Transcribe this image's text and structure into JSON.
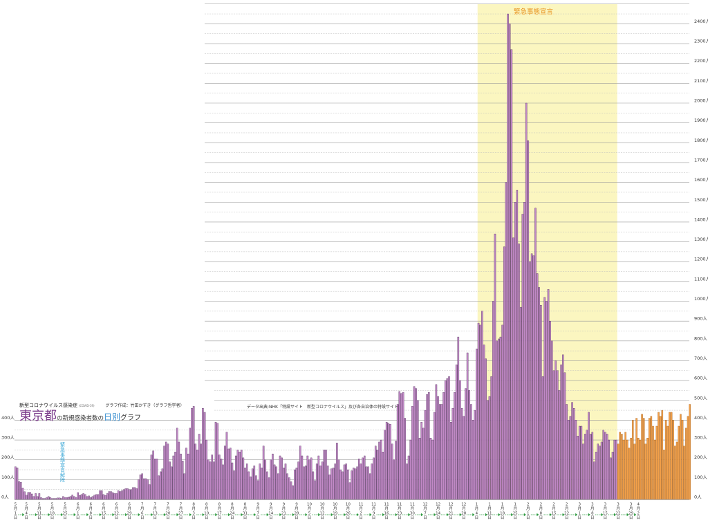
{
  "header": {
    "title_main": "新型コロナウイルス感染症",
    "title_small": "(COVID-19)",
    "author": "グラフ作成：竹田かずき（グラフ哲学者）",
    "subtitle_tokyo": "東京都",
    "subtitle_mid": "の新規感染者数の",
    "subtitle_daily": "日別",
    "subtitle_graph": "グラフ",
    "source": "データ出典:NHK「特設サイト　新型コロナウイルス」及び各自治体の特設サイト"
  },
  "annotations": {
    "emergency_label": "緊急事態宣言",
    "lift_label": "緊急事態宣言解除"
  },
  "colors": {
    "bar": "#c189c6",
    "bar_stroke": "#4a2a55",
    "bar_recent": "#f2a04a",
    "bar_recent_stroke": "#9a5a1a",
    "emergency_band": "#fbf6c0",
    "grid_solid": "#9a9a9a",
    "grid_dash": "#bdbdbd",
    "arrow": "#2e9a40"
  },
  "chart_data": {
    "type": "bar",
    "title": "新型コロナウイルス感染症 東京都の新規感染者数の日別グラフ",
    "ylim": [
      0,
      2500
    ],
    "y_unit": "人",
    "grid": true,
    "y_ticks": [
      "0人",
      "100人",
      "200人",
      "300人",
      "400人",
      "500人",
      "600人",
      "700人",
      "800人",
      "900人",
      "1000人",
      "1100人",
      "1200人",
      "1300人",
      "1400人",
      "1500人",
      "1600人",
      "1700人",
      "1800人",
      "1900人",
      "2000人",
      "2100人",
      "2200人",
      "2300人",
      "2400人"
    ],
    "x_ticks": [
      {
        "index": 0,
        "label": "5月1日"
      },
      {
        "index": 6,
        "label": "5月4日"
      },
      {
        "index": 13,
        "label": "5月11日"
      },
      {
        "index": 20,
        "label": "5月18日"
      },
      {
        "index": 27,
        "label": "5月25日"
      },
      {
        "index": 34,
        "label": "6月1日"
      },
      {
        "index": 41,
        "label": "6月8日"
      },
      {
        "index": 48,
        "label": "6月15日"
      },
      {
        "index": 55,
        "label": "6月22日"
      },
      {
        "index": 62,
        "label": "6月29日"
      },
      {
        "index": 69,
        "label": "7月6日"
      },
      {
        "index": 76,
        "label": "7月13日"
      },
      {
        "index": 83,
        "label": "7月20日"
      },
      {
        "index": 90,
        "label": "7月27日"
      },
      {
        "index": 97,
        "label": "8月3日"
      },
      {
        "index": 104,
        "label": "8月10日"
      },
      {
        "index": 111,
        "label": "8月17日"
      },
      {
        "index": 118,
        "label": "8月24日"
      },
      {
        "index": 125,
        "label": "8月31日"
      },
      {
        "index": 132,
        "label": "9月7日"
      },
      {
        "index": 139,
        "label": "9月14日"
      },
      {
        "index": 146,
        "label": "9月21日"
      },
      {
        "index": 153,
        "label": "9月28日"
      },
      {
        "index": 160,
        "label": "10月5日"
      },
      {
        "index": 167,
        "label": "10月12日"
      },
      {
        "index": 174,
        "label": "10月19日"
      },
      {
        "index": 181,
        "label": "10月26日"
      },
      {
        "index": 188,
        "label": "11月2日"
      },
      {
        "index": 195,
        "label": "11月9日"
      },
      {
        "index": 202,
        "label": "11月16日"
      },
      {
        "index": 209,
        "label": "11月23日"
      },
      {
        "index": 216,
        "label": "11月30日"
      },
      {
        "index": 223,
        "label": "12月7日"
      },
      {
        "index": 230,
        "label": "12月14日"
      },
      {
        "index": 237,
        "label": "12月21日"
      },
      {
        "index": 244,
        "label": "12月28日"
      },
      {
        "index": 251,
        "label": "1月4日"
      },
      {
        "index": 258,
        "label": "1月11日"
      },
      {
        "index": 265,
        "label": "1月18日"
      },
      {
        "index": 272,
        "label": "1月25日"
      },
      {
        "index": 279,
        "label": "2月1日"
      },
      {
        "index": 286,
        "label": "2月8日"
      },
      {
        "index": 293,
        "label": "2月15日"
      },
      {
        "index": 300,
        "label": "2月22日"
      },
      {
        "index": 307,
        "label": "3月1日"
      },
      {
        "index": 314,
        "label": "3月8日"
      },
      {
        "index": 321,
        "label": "3月15日"
      },
      {
        "index": 328,
        "label": "3月22日"
      },
      {
        "index": 335,
        "label": "3月29日"
      },
      {
        "index": 339,
        "label": "4月2日"
      }
    ],
    "emergency_period": {
      "start": 252,
      "end": 328
    },
    "recent_start": 328,
    "values": [
      165,
      160,
      91,
      87,
      58,
      39,
      22,
      36,
      36,
      28,
      15,
      30,
      15,
      30,
      10,
      5,
      5,
      10,
      15,
      10,
      5,
      5,
      5,
      8,
      8,
      5,
      15,
      10,
      10,
      13,
      15,
      23,
      15,
      10,
      35,
      20,
      25,
      30,
      25,
      15,
      18,
      10,
      15,
      22,
      25,
      25,
      45,
      45,
      25,
      20,
      30,
      40,
      40,
      35,
      30,
      30,
      45,
      40,
      45,
      50,
      55,
      55,
      50,
      50,
      60,
      60,
      55,
      100,
      125,
      130,
      105,
      105,
      100,
      75,
      225,
      245,
      205,
      205,
      120,
      140,
      155,
      270,
      290,
      280,
      190,
      165,
      220,
      240,
      360,
      290,
      230,
      195,
      130,
      260,
      230,
      360,
      460,
      470,
      280,
      250,
      330,
      280,
      460,
      440,
      300,
      200,
      190,
      225,
      190,
      390,
      385,
      225,
      205,
      175,
      270,
      340,
      255,
      260,
      185,
      145,
      220,
      250,
      240,
      250,
      210,
      160,
      180,
      140,
      115,
      155,
      170,
      120,
      95,
      180,
      160,
      270,
      200,
      140,
      110,
      200,
      230,
      175,
      165,
      130,
      220,
      210,
      160,
      180,
      130,
      110,
      90,
      70,
      150,
      160,
      190,
      270,
      220,
      165,
      170,
      220,
      200,
      210,
      140,
      95,
      180,
      220,
      170,
      190,
      250,
      250,
      170,
      125,
      155,
      160,
      180,
      285,
      200,
      150,
      140,
      175,
      180,
      150,
      85,
      145,
      160,
      155,
      165,
      205,
      180,
      210,
      220,
      165,
      165,
      130,
      180,
      210,
      270,
      250,
      290,
      300,
      240,
      350,
      390,
      385,
      380,
      280,
      200,
      295,
      480,
      545,
      535,
      540,
      410,
      180,
      220,
      300,
      470,
      570,
      560,
      500,
      310,
      390,
      360,
      450,
      530,
      540,
      310,
      300,
      440,
      580,
      520,
      480,
      480,
      540,
      600,
      610,
      620,
      390,
      460,
      540,
      680,
      820,
      600,
      460,
      420,
      560,
      740,
      550,
      480,
      400,
      450,
      760,
      890,
      880,
      950,
      780,
      710,
      500,
      520,
      620,
      1000,
      1340,
      800,
      810,
      820,
      880,
      1275,
      1600,
      2450,
      2400,
      2270,
      1320,
      1500,
      1560,
      1290,
      970,
      1440,
      1500,
      2000,
      1810,
      1200,
      1240,
      1230,
      1470,
      1140,
      1070,
      980,
      620,
      1020,
      1000,
      1060,
      900,
      800,
      650,
      700,
      650,
      550,
      680,
      730,
      640,
      480,
      400,
      420,
      490,
      460,
      400,
      320,
      370,
      370,
      280,
      330,
      350,
      440,
      330,
      340,
      190,
      240,
      280,
      270,
      290,
      350,
      340,
      330,
      300,
      210,
      240,
      300,
      300,
      280,
      340,
      330,
      300,
      340,
      300,
      260,
      310,
      400,
      280,
      410,
      310,
      300,
      430,
      410,
      280,
      310,
      410,
      420,
      370,
      300,
      370,
      440,
      420,
      450,
      250,
      400,
      370,
      440,
      440,
      400,
      270,
      290,
      370,
      430,
      400,
      270,
      360,
      420,
      480
    ]
  }
}
